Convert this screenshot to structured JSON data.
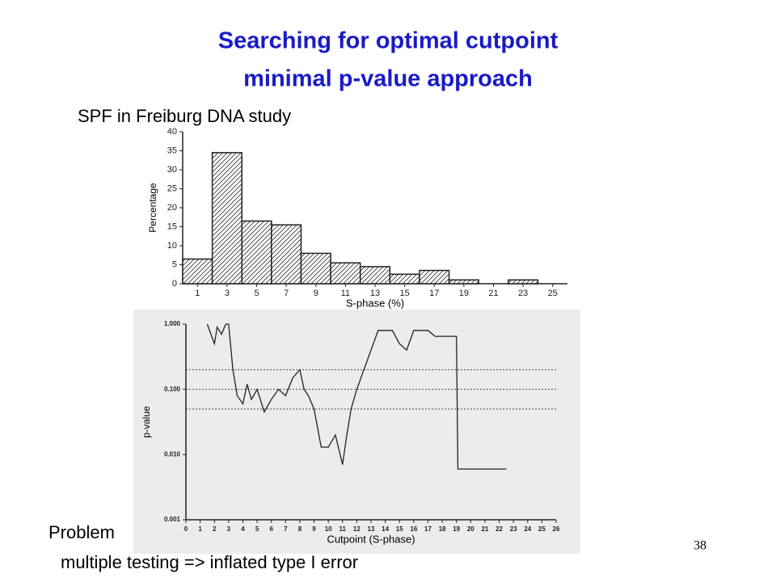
{
  "title_lines": [
    "Searching for optimal cutpoint",
    "minimal p-value approach"
  ],
  "study_label": "SPF in Freiburg DNA study",
  "problem_label": "Problem",
  "problem_text": "multiple testing => inflated type I error",
  "page_number": "38",
  "chart_data": [
    {
      "type": "histogram",
      "xlabel": "S-phase (%)",
      "ylabel": "Percentage",
      "color": "#222222",
      "bins": [
        0,
        2,
        4,
        6,
        8,
        10,
        12,
        14,
        16,
        18,
        20,
        22,
        24
      ],
      "values": [
        6.5,
        34.5,
        16.5,
        15.5,
        8,
        5.5,
        4.5,
        2.5,
        3.5,
        1,
        0,
        1
      ],
      "xlim": [
        0,
        26
      ],
      "xticks": [
        1,
        3,
        5,
        7,
        9,
        11,
        13,
        15,
        17,
        19,
        21,
        23,
        25
      ],
      "ylim": [
        0,
        40
      ],
      "yticks": [
        0,
        5,
        10,
        15,
        20,
        25,
        30,
        35,
        40
      ]
    },
    {
      "type": "line",
      "xlabel": "Cutpoint (S-phase)",
      "ylabel": "p-value",
      "color": "#222222",
      "log_y": true,
      "x": [
        1.5,
        2,
        2.2,
        2.5,
        2.8,
        3,
        3.3,
        3.6,
        4,
        4.3,
        4.6,
        5,
        5.5,
        6,
        6.5,
        7,
        7.5,
        8,
        8.3,
        8.6,
        9,
        9.5,
        10,
        10.5,
        11,
        11.3,
        11.6,
        12,
        12.5,
        13,
        13.5,
        14.5,
        15,
        15.5,
        16,
        17,
        17.5,
        19,
        19.1,
        22.5
      ],
      "values": [
        1,
        0.5,
        0.9,
        0.7,
        1,
        1,
        0.2,
        0.08,
        0.06,
        0.12,
        0.07,
        0.1,
        0.045,
        0.07,
        0.1,
        0.08,
        0.15,
        0.2,
        0.1,
        0.08,
        0.05,
        0.013,
        0.013,
        0.02,
        0.007,
        0.02,
        0.05,
        0.1,
        0.2,
        0.4,
        0.8,
        0.8,
        0.5,
        0.4,
        0.8,
        0.8,
        0.65,
        0.65,
        0.006,
        0.006
      ],
      "hlines": [
        0.2,
        0.1,
        0.05
      ],
      "xlim": [
        0,
        26
      ],
      "xticks": [
        0,
        1,
        2,
        3,
        4,
        5,
        6,
        7,
        8,
        9,
        10,
        11,
        12,
        13,
        14,
        15,
        16,
        17,
        18,
        19,
        20,
        21,
        22,
        23,
        24,
        25,
        26
      ],
      "ylim": [
        0.001,
        1
      ],
      "yticks": [
        {
          "value": 0.001,
          "label": "0.001"
        },
        {
          "value": 0.01,
          "label": "0.010"
        },
        {
          "value": 0.1,
          "label": "0.100"
        },
        {
          "value": 1,
          "label": "1.000"
        }
      ]
    }
  ]
}
